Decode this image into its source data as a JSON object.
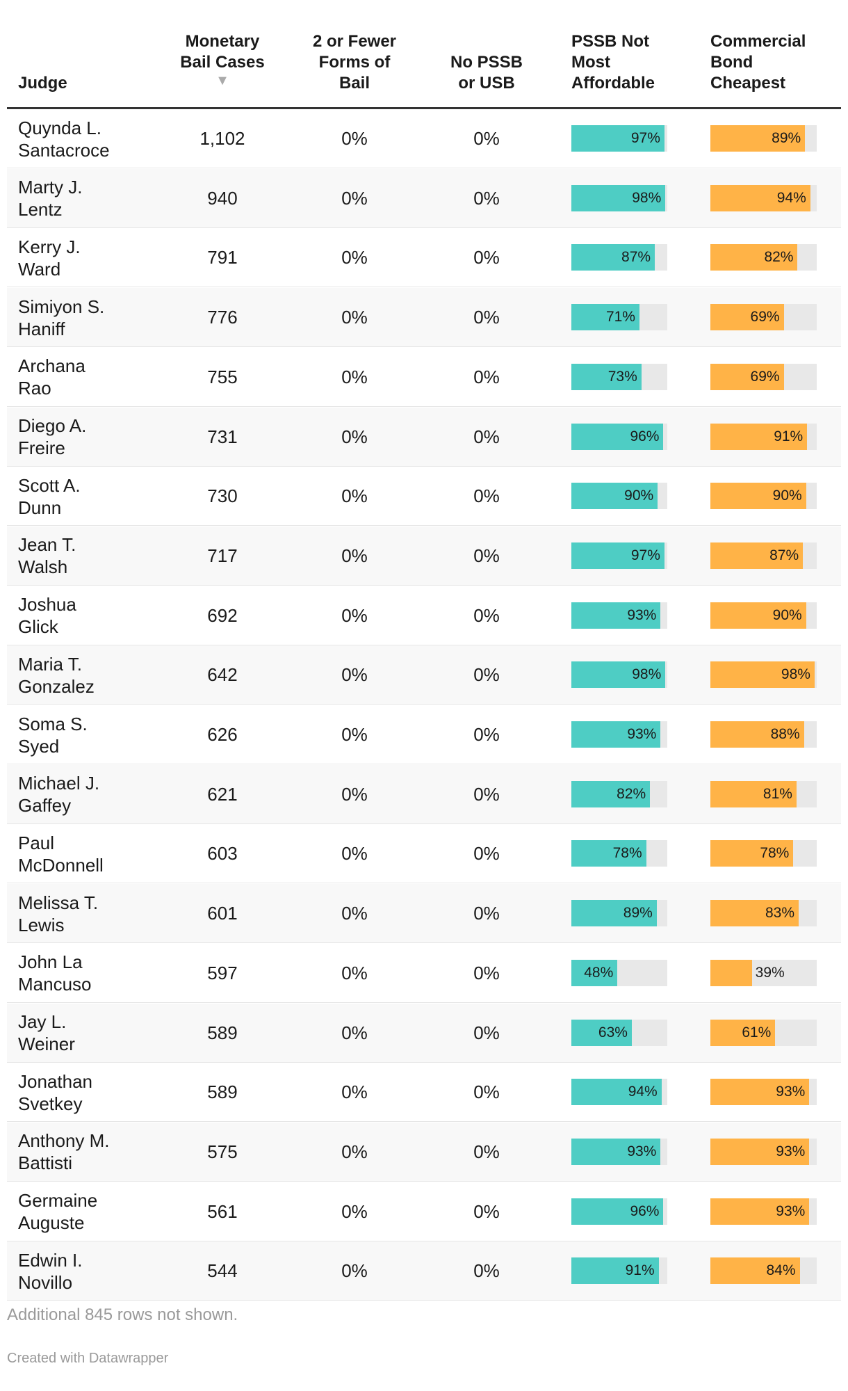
{
  "colors": {
    "pssb_bar": "#4ecdc4",
    "commercial_bar": "#ffb347",
    "bar_track": "#e8e8e8",
    "row_alt": "#f8f8f8",
    "muted_text": "#9a9a9a"
  },
  "header": {
    "judge": "Judge",
    "monetary_line1": "Monetary",
    "monetary_line2": "Bail Cases",
    "fewer_line1": "2 or Fewer",
    "fewer_line2": "Forms of",
    "fewer_line3": "Bail",
    "nopssb_line1": "No PSSB",
    "nopssb_line2": "or USB",
    "pssb_line1": "PSSB Not",
    "pssb_line2": "Most",
    "pssb_line3": "Affordable",
    "commercial_line1": "Commercial",
    "commercial_line2": "Bond",
    "commercial_line3": "Cheapest",
    "sort_icon": "sort-descending-icon"
  },
  "chart_data": {
    "type": "table",
    "columns": [
      "Judge",
      "Monetary Bail Cases",
      "2 or Fewer Forms of Bail",
      "No PSSB or USB",
      "PSSB Not Most Affordable",
      "Commercial Bond Cheapest"
    ],
    "sorted_by": "Monetary Bail Cases",
    "sort_order": "descending",
    "rows": [
      {
        "judge_line1": "Quynda L.",
        "judge_line2": "Santacroce",
        "monetary": "1,102",
        "fewer": "0%",
        "nopssb": "0%",
        "pssb": 97,
        "pssb_label": "97%",
        "commercial": 89,
        "commercial_label": "89%"
      },
      {
        "judge_line1": "Marty J.",
        "judge_line2": "Lentz",
        "monetary": "940",
        "fewer": "0%",
        "nopssb": "0%",
        "pssb": 98,
        "pssb_label": "98%",
        "commercial": 94,
        "commercial_label": "94%"
      },
      {
        "judge_line1": "Kerry J.",
        "judge_line2": "Ward",
        "monetary": "791",
        "fewer": "0%",
        "nopssb": "0%",
        "pssb": 87,
        "pssb_label": "87%",
        "commercial": 82,
        "commercial_label": "82%"
      },
      {
        "judge_line1": "Simiyon S.",
        "judge_line2": "Haniff",
        "monetary": "776",
        "fewer": "0%",
        "nopssb": "0%",
        "pssb": 71,
        "pssb_label": "71%",
        "commercial": 69,
        "commercial_label": "69%"
      },
      {
        "judge_line1": "Archana",
        "judge_line2": "Rao",
        "monetary": "755",
        "fewer": "0%",
        "nopssb": "0%",
        "pssb": 73,
        "pssb_label": "73%",
        "commercial": 69,
        "commercial_label": "69%"
      },
      {
        "judge_line1": "Diego A.",
        "judge_line2": "Freire",
        "monetary": "731",
        "fewer": "0%",
        "nopssb": "0%",
        "pssb": 96,
        "pssb_label": "96%",
        "commercial": 91,
        "commercial_label": "91%"
      },
      {
        "judge_line1": "Scott A.",
        "judge_line2": "Dunn",
        "monetary": "730",
        "fewer": "0%",
        "nopssb": "0%",
        "pssb": 90,
        "pssb_label": "90%",
        "commercial": 90,
        "commercial_label": "90%"
      },
      {
        "judge_line1": "Jean T.",
        "judge_line2": "Walsh",
        "monetary": "717",
        "fewer": "0%",
        "nopssb": "0%",
        "pssb": 97,
        "pssb_label": "97%",
        "commercial": 87,
        "commercial_label": "87%"
      },
      {
        "judge_line1": "Joshua",
        "judge_line2": "Glick",
        "monetary": "692",
        "fewer": "0%",
        "nopssb": "0%",
        "pssb": 93,
        "pssb_label": "93%",
        "commercial": 90,
        "commercial_label": "90%"
      },
      {
        "judge_line1": "Maria T.",
        "judge_line2": "Gonzalez",
        "monetary": "642",
        "fewer": "0%",
        "nopssb": "0%",
        "pssb": 98,
        "pssb_label": "98%",
        "commercial": 98,
        "commercial_label": "98%"
      },
      {
        "judge_line1": "Soma S.",
        "judge_line2": "Syed",
        "monetary": "626",
        "fewer": "0%",
        "nopssb": "0%",
        "pssb": 93,
        "pssb_label": "93%",
        "commercial": 88,
        "commercial_label": "88%"
      },
      {
        "judge_line1": "Michael J.",
        "judge_line2": "Gaffey",
        "monetary": "621",
        "fewer": "0%",
        "nopssb": "0%",
        "pssb": 82,
        "pssb_label": "82%",
        "commercial": 81,
        "commercial_label": "81%"
      },
      {
        "judge_line1": "Paul",
        "judge_line2": "McDonnell",
        "monetary": "603",
        "fewer": "0%",
        "nopssb": "0%",
        "pssb": 78,
        "pssb_label": "78%",
        "commercial": 78,
        "commercial_label": "78%"
      },
      {
        "judge_line1": "Melissa T.",
        "judge_line2": "Lewis",
        "monetary": "601",
        "fewer": "0%",
        "nopssb": "0%",
        "pssb": 89,
        "pssb_label": "89%",
        "commercial": 83,
        "commercial_label": "83%"
      },
      {
        "judge_line1": "John La",
        "judge_line2": "Mancuso",
        "monetary": "597",
        "fewer": "0%",
        "nopssb": "0%",
        "pssb": 48,
        "pssb_label": "48%",
        "commercial": 39,
        "commercial_label": "39%"
      },
      {
        "judge_line1": "Jay L.",
        "judge_line2": "Weiner",
        "monetary": "589",
        "fewer": "0%",
        "nopssb": "0%",
        "pssb": 63,
        "pssb_label": "63%",
        "commercial": 61,
        "commercial_label": "61%"
      },
      {
        "judge_line1": "Jonathan",
        "judge_line2": "Svetkey",
        "monetary": "589",
        "fewer": "0%",
        "nopssb": "0%",
        "pssb": 94,
        "pssb_label": "94%",
        "commercial": 93,
        "commercial_label": "93%"
      },
      {
        "judge_line1": "Anthony M.",
        "judge_line2": "Battisti",
        "monetary": "575",
        "fewer": "0%",
        "nopssb": "0%",
        "pssb": 93,
        "pssb_label": "93%",
        "commercial": 93,
        "commercial_label": "93%"
      },
      {
        "judge_line1": "Germaine",
        "judge_line2": "Auguste",
        "monetary": "561",
        "fewer": "0%",
        "nopssb": "0%",
        "pssb": 96,
        "pssb_label": "96%",
        "commercial": 93,
        "commercial_label": "93%"
      },
      {
        "judge_line1": "Edwin I.",
        "judge_line2": "Novillo",
        "monetary": "544",
        "fewer": "0%",
        "nopssb": "0%",
        "pssb": 91,
        "pssb_label": "91%",
        "commercial": 84,
        "commercial_label": "84%"
      }
    ]
  },
  "footer": {
    "note": "Additional 845 rows not shown.",
    "credit": "Created with Datawrapper"
  }
}
